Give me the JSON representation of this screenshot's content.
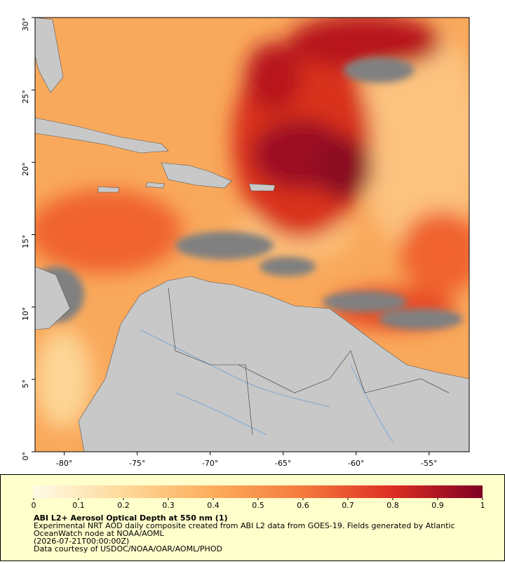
{
  "chart_data": {
    "type": "map",
    "title": "ABI L2+ Aerosol Optical Depth at 550 nm (1)",
    "caption": [
      "Experimental NRT AOD daily composite created from ABI L2 data from GOES-19. Fields generated by Atlantic",
      "OceanWatch node at NOAA/AOML",
      "(2026-07-21T00:00:00Z)",
      "Data courtesy of USDOC/NOAA/OAR/AOML/PHOD"
    ],
    "xlim": [
      -82,
      -52.25
    ],
    "ylim": [
      0,
      30
    ],
    "xticks": [
      {
        "value": -80,
        "label": "-80°"
      },
      {
        "value": -75,
        "label": "-75°"
      },
      {
        "value": -70,
        "label": "-70°"
      },
      {
        "value": -65,
        "label": "-65°"
      },
      {
        "value": -60,
        "label": "-60°"
      },
      {
        "value": -55,
        "label": "-55°"
      }
    ],
    "yticks": [
      {
        "value": 0,
        "label": "0°"
      },
      {
        "value": 5,
        "label": "5°"
      },
      {
        "value": 10,
        "label": "10°"
      },
      {
        "value": 15,
        "label": "15°"
      },
      {
        "value": 20,
        "label": "20°"
      },
      {
        "value": 25,
        "label": "25°"
      },
      {
        "value": 30,
        "label": "30°"
      }
    ],
    "clim": [
      0,
      1
    ],
    "cticks": [
      0,
      0.1,
      0.2,
      0.3,
      0.4,
      0.5,
      0.6,
      0.7,
      0.8,
      0.9,
      1
    ]
  }
}
